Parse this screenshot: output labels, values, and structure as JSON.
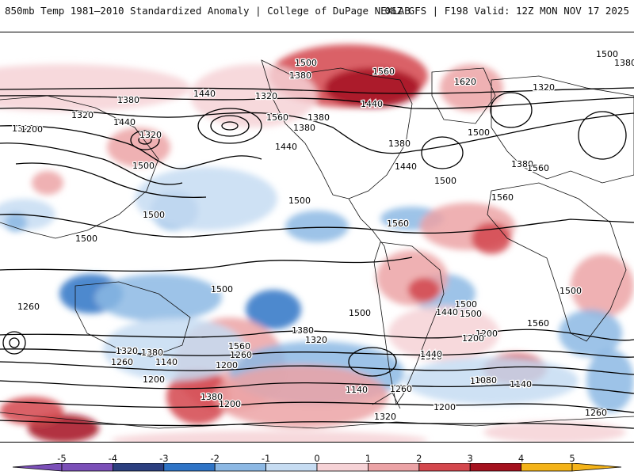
{
  "header": {
    "left_title": "850mb Temp 1981–2010 Standardized Anomaly | College of DuPage NEXLAB",
    "right_title": "06Z GFS | F198 Valid: 12Z MON NOV 17 2025"
  },
  "map": {
    "contour_labels": [
      "1500",
      "1500",
      "1380",
      "1560",
      "1620",
      "1320",
      "1380",
      "1440",
      "1320",
      "1380",
      "1320",
      "1560",
      "1320",
      "1380",
      "1440",
      "1500",
      "1200",
      "1440",
      "1380",
      "1380",
      "1320",
      "1380",
      "1560",
      "1440",
      "1500",
      "1440",
      "1500",
      "1500",
      "1560",
      "1560",
      "1500",
      "1500",
      "1500",
      "1500",
      "1500",
      "1500",
      "1500",
      "1440",
      "1380",
      "1560",
      "1320",
      "1200",
      "1560",
      "1380",
      "1320",
      "1320",
      "1200",
      "1260",
      "1140",
      "1200",
      "1260",
      "1440",
      "1380",
      "1260",
      "1200",
      "1140",
      "1080",
      "1140",
      "1260",
      "1200",
      "1320",
      "1260",
      "1200",
      "1260",
      "1380"
    ],
    "colors": {
      "neg5": "#7b4fb8",
      "neg4": "#2c3f80",
      "neg3": "#2f74c6",
      "neg2": "#8cb8e4",
      "neg1": "#c6dcf2",
      "pos1": "#f6d2d6",
      "pos2": "#eca3a6",
      "pos3": "#d4474d",
      "pos4": "#a5121f",
      "pos5": "#f4b318"
    }
  },
  "colorbar": {
    "ticks": [
      "-5",
      "-4",
      "-3",
      "-2",
      "-1",
      "0",
      "1",
      "2",
      "3",
      "4",
      "5"
    ]
  }
}
